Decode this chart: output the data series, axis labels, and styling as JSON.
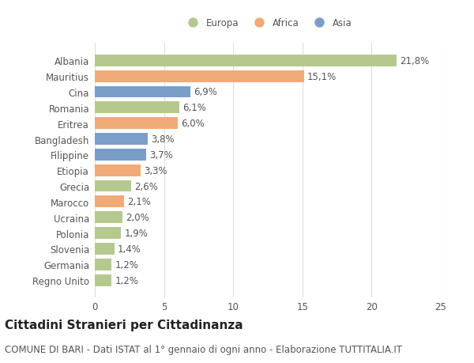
{
  "categories": [
    "Albania",
    "Mauritius",
    "Cina",
    "Romania",
    "Eritrea",
    "Bangladesh",
    "Filippine",
    "Etiopia",
    "Grecia",
    "Marocco",
    "Ucraina",
    "Polonia",
    "Slovenia",
    "Germania",
    "Regno Unito"
  ],
  "values": [
    21.8,
    15.1,
    6.9,
    6.1,
    6.0,
    3.8,
    3.7,
    3.3,
    2.6,
    2.1,
    2.0,
    1.9,
    1.4,
    1.2,
    1.2
  ],
  "labels": [
    "21,8%",
    "15,1%",
    "6,9%",
    "6,1%",
    "6,0%",
    "3,8%",
    "3,7%",
    "3,3%",
    "2,6%",
    "2,1%",
    "2,0%",
    "1,9%",
    "1,4%",
    "1,2%",
    "1,2%"
  ],
  "continents": [
    "Europa",
    "Africa",
    "Asia",
    "Europa",
    "Africa",
    "Asia",
    "Asia",
    "Africa",
    "Europa",
    "Africa",
    "Europa",
    "Europa",
    "Europa",
    "Europa",
    "Europa"
  ],
  "colors": {
    "Europa": "#b5c98e",
    "Africa": "#f0aa78",
    "Asia": "#7b9ec9"
  },
  "legend_order": [
    "Europa",
    "Africa",
    "Asia"
  ],
  "xlim": [
    0,
    25
  ],
  "xticks": [
    0,
    5,
    10,
    15,
    20,
    25
  ],
  "title": "Cittadini Stranieri per Cittadinanza",
  "subtitle": "COMUNE DI BARI - Dati ISTAT al 1° gennaio di ogni anno - Elaborazione TUTTITALIA.IT",
  "bg_color": "#ffffff",
  "plot_bg_color": "#ffffff",
  "grid_color": "#dddddd",
  "title_fontsize": 11,
  "subtitle_fontsize": 8.5,
  "label_fontsize": 8.5,
  "tick_fontsize": 8.5,
  "bar_height": 0.75
}
